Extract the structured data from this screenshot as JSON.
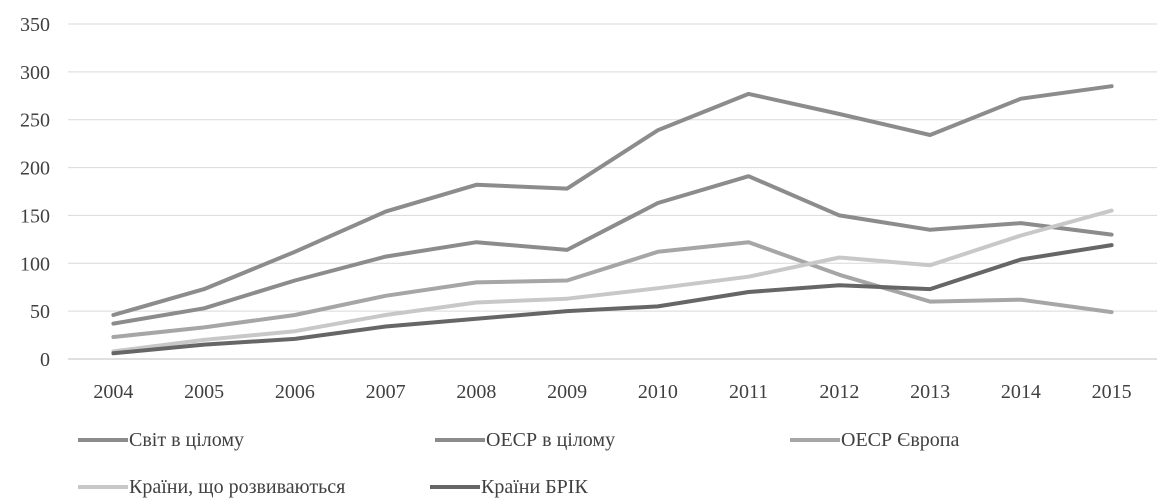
{
  "chart_data": {
    "type": "line",
    "title": "",
    "xlabel": "",
    "ylabel": "",
    "ylim": [
      0,
      350
    ],
    "yticks": [
      0,
      50,
      100,
      150,
      200,
      250,
      300,
      350
    ],
    "grid": true,
    "legend_position": "bottom",
    "categories": [
      "2004",
      "2005",
      "2006",
      "2007",
      "2008",
      "2009",
      "2010",
      "2011",
      "2012",
      "2013",
      "2014",
      "2015"
    ],
    "series": [
      {
        "name": "Світ в цілому",
        "color": "#8c8c8c",
        "values": [
          46,
          73,
          112,
          154,
          182,
          178,
          239,
          277,
          256,
          234,
          272,
          285
        ]
      },
      {
        "name": "ОЕСР в цілому",
        "color": "#8c8c8c",
        "values": [
          37,
          53,
          82,
          107,
          122,
          114,
          163,
          191,
          150,
          135,
          142,
          130
        ]
      },
      {
        "name": "ОЕСР Європа",
        "color": "#a6a6a6",
        "values": [
          23,
          33,
          46,
          66,
          80,
          82,
          112,
          122,
          88,
          60,
          62,
          49
        ]
      },
      {
        "name": "Країни, що розвиваються",
        "color": "#c8c8c8",
        "values": [
          8,
          20,
          29,
          46,
          59,
          63,
          74,
          86,
          106,
          98,
          129,
          155
        ]
      },
      {
        "name": "Країни БРІК",
        "color": "#666666",
        "values": [
          6,
          15,
          21,
          34,
          42,
          50,
          55,
          70,
          77,
          73,
          104,
          119
        ]
      }
    ]
  }
}
